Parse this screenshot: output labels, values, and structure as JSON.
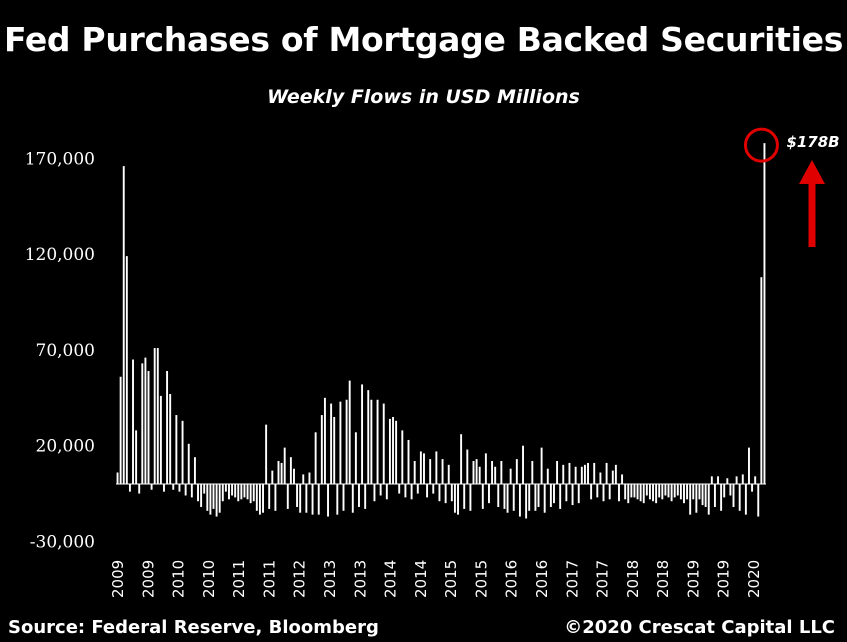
{
  "header": {
    "title": "Fed Purchases of Mortgage Backed Securities",
    "subtitle": "Weekly Flows in USD Millions"
  },
  "footer": {
    "source": "Source: Federal Reserve, Bloomberg",
    "copyright": "©2020 Crescat Capital LLC"
  },
  "colors": {
    "background": "#000000",
    "bars": "#ffffff",
    "highlight": "#e00000"
  },
  "chart_data": {
    "type": "bar",
    "title": "Fed Purchases of Mortgage Backed Securities",
    "subtitle": "Weekly Flows in USD Millions",
    "ylim": [
      -30000,
      180000
    ],
    "y_ticks": [
      170000,
      120000,
      70000,
      20000,
      -30000
    ],
    "y_tick_labels": [
      "170,000",
      "120,000",
      "70,000",
      "20,000",
      "-30,000"
    ],
    "x_tick_labels": [
      "2009",
      "2009",
      "2010",
      "2010",
      "2011",
      "2011",
      "2012",
      "2013",
      "2013",
      "2014",
      "2014",
      "2015",
      "2015",
      "2016",
      "2016",
      "2017",
      "2017",
      "2018",
      "2018",
      "2019",
      "2019",
      "2020"
    ],
    "annotation": {
      "label": "$178B",
      "value": 178000
    },
    "values": [
      6000,
      56000,
      166000,
      119000,
      -4000,
      65000,
      28000,
      -5000,
      63000,
      66000,
      59000,
      -3000,
      71000,
      71000,
      46000,
      -4000,
      59000,
      47000,
      -3000,
      36000,
      -4000,
      33000,
      -6000,
      21000,
      -7000,
      14000,
      -9000,
      -12000,
      -5000,
      -14000,
      -16000,
      -13000,
      -17000,
      -15000,
      -9000,
      -4000,
      -8000,
      -6000,
      -7000,
      -9000,
      -8000,
      -7000,
      -8000,
      -10000,
      -9000,
      -14000,
      -16000,
      -15000,
      31000,
      -13000,
      7000,
      -14000,
      12000,
      11000,
      19000,
      -13000,
      14000,
      8000,
      -12000,
      -15000,
      5000,
      -15000,
      6000,
      -16000,
      27000,
      -16000,
      36000,
      45000,
      -17000,
      42000,
      35000,
      -16000,
      43000,
      -14000,
      44000,
      54000,
      -15000,
      27000,
      -12000,
      52000,
      -13000,
      49000,
      44000,
      -9000,
      44000,
      -6000,
      42000,
      -8000,
      34000,
      35000,
      33000,
      -5000,
      28000,
      -7000,
      23000,
      -8000,
      12000,
      -5000,
      17000,
      16000,
      -7000,
      13000,
      -5000,
      17000,
      -9000,
      13000,
      -10000,
      10000,
      -9000,
      -15000,
      -16000,
      26000,
      -13000,
      18000,
      -14000,
      12000,
      13000,
      9000,
      -13000,
      16000,
      -10000,
      12000,
      9000,
      -12000,
      12000,
      -13000,
      -15000,
      8000,
      -14000,
      13000,
      -17000,
      20000,
      -18000,
      -14000,
      12000,
      -14000,
      -12000,
      19000,
      -15000,
      8000,
      -12000,
      -10000,
      12000,
      -13000,
      10000,
      -9000,
      11000,
      -11000,
      9000,
      -10000,
      9000,
      10000,
      11000,
      -8000,
      11000,
      -7000,
      6000,
      -9000,
      11000,
      -8000,
      7000,
      10000,
      -9000,
      5000,
      -8000,
      -10000,
      -7000,
      -7000,
      -8000,
      -9000,
      -10000,
      -6000,
      -8000,
      -9000,
      -10000,
      -7000,
      -8000,
      -6000,
      -7000,
      -9000,
      -7000,
      -6000,
      -8000,
      -10000,
      -8000,
      -16000,
      -8000,
      -15000,
      -8000,
      -11000,
      -12000,
      -16000,
      4000,
      -12000,
      4000,
      -14000,
      -7000,
      3000,
      -6000,
      -12000,
      4000,
      -14000,
      5000,
      -16000,
      19000,
      -4000,
      4000,
      -17000,
      108000,
      178000
    ]
  }
}
